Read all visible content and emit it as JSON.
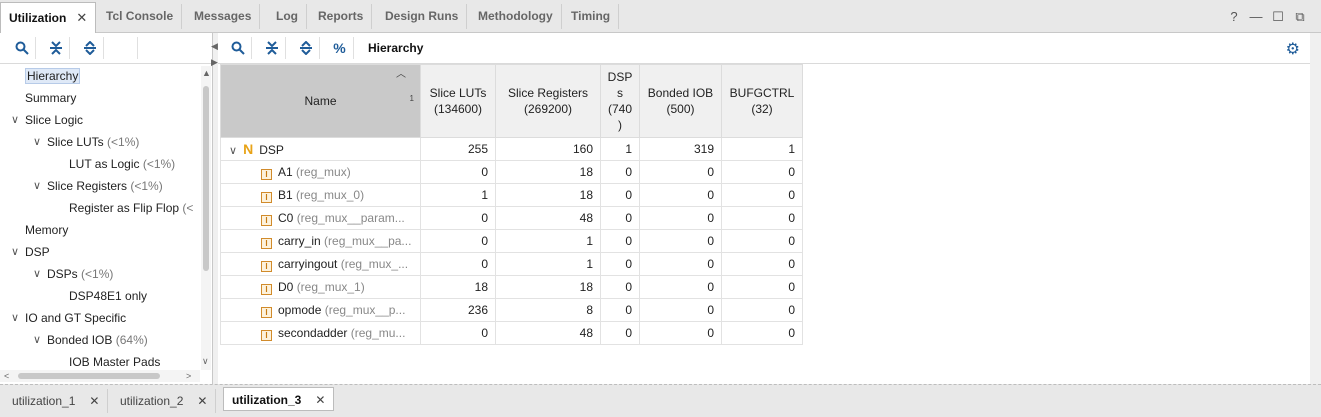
{
  "top_tabs": [
    {
      "label": "Utilization",
      "active": true,
      "closable": true
    },
    {
      "label": "Tcl Console"
    },
    {
      "label": "Messages"
    },
    {
      "label": "Log"
    },
    {
      "label": "Reports"
    },
    {
      "label": "Design Runs"
    },
    {
      "label": "Methodology"
    },
    {
      "label": "Timing"
    }
  ],
  "window_controls": {
    "help": "?",
    "minimize": "—",
    "restore": "☐",
    "float": "⧉"
  },
  "left_tree": [
    {
      "label": "Hierarchy",
      "pct": "",
      "selected": true
    },
    {
      "label": "Summary",
      "pct": ""
    },
    {
      "label": "Slice Logic",
      "pct": ""
    },
    {
      "label": "Slice LUTs",
      "pct": "(<1%)"
    },
    {
      "label": "LUT as Logic",
      "pct": "(<1%)"
    },
    {
      "label": "Slice Registers",
      "pct": "(<1%)"
    },
    {
      "label": "Register as Flip Flop",
      "pct": "(<"
    },
    {
      "label": "Memory",
      "pct": ""
    },
    {
      "label": "DSP",
      "pct": ""
    },
    {
      "label": "DSPs",
      "pct": "(<1%)"
    },
    {
      "label": "DSP48E1 only",
      "pct": ""
    },
    {
      "label": "IO and GT Specific",
      "pct": ""
    },
    {
      "label": "Bonded IOB",
      "pct": "(64%)"
    },
    {
      "label": "IOB Master Pads",
      "pct": ""
    }
  ],
  "right_toolbar": {
    "title": "Hierarchy",
    "percent_icon": "%"
  },
  "table": {
    "headers": [
      {
        "line1": "Name",
        "line2": ""
      },
      {
        "line1": "Slice LUTs",
        "line2": "(134600)"
      },
      {
        "line1": "Slice Registers",
        "line2": "(269200)"
      },
      {
        "line1": "DSP",
        "line2": "s",
        "line3": "(740",
        "line4": ")"
      },
      {
        "line1": "Bonded IOB",
        "line2": "(500)"
      },
      {
        "line1": "BUFGCTRL",
        "line2": "(32)"
      }
    ],
    "sort_order": "1",
    "parent": {
      "name": "DSP",
      "values": [
        "255",
        "160",
        "1",
        "319",
        "1"
      ]
    },
    "rows": [
      {
        "name": "A1",
        "inst": "(reg_mux)",
        "values": [
          "0",
          "18",
          "0",
          "0",
          "0"
        ]
      },
      {
        "name": "B1",
        "inst": "(reg_mux_0)",
        "values": [
          "1",
          "18",
          "0",
          "0",
          "0"
        ]
      },
      {
        "name": "C0",
        "inst": "(reg_mux__param...",
        "values": [
          "0",
          "48",
          "0",
          "0",
          "0"
        ]
      },
      {
        "name": "carry_in",
        "inst": "(reg_mux__pa...",
        "values": [
          "0",
          "1",
          "0",
          "0",
          "0"
        ]
      },
      {
        "name": "carryingout",
        "inst": "(reg_mux_...",
        "values": [
          "0",
          "1",
          "0",
          "0",
          "0"
        ]
      },
      {
        "name": "D0",
        "inst": "(reg_mux_1)",
        "values": [
          "18",
          "18",
          "0",
          "0",
          "0"
        ]
      },
      {
        "name": "opmode",
        "inst": "(reg_mux__p...",
        "values": [
          "236",
          "8",
          "0",
          "0",
          "0"
        ]
      },
      {
        "name": "secondadder",
        "inst": "(reg_mu...",
        "values": [
          "0",
          "48",
          "0",
          "0",
          "0"
        ]
      }
    ]
  },
  "bottom_tabs": [
    {
      "label": "utilization_1"
    },
    {
      "label": "utilization_2"
    },
    {
      "label": "utilization_3",
      "active": true
    }
  ]
}
